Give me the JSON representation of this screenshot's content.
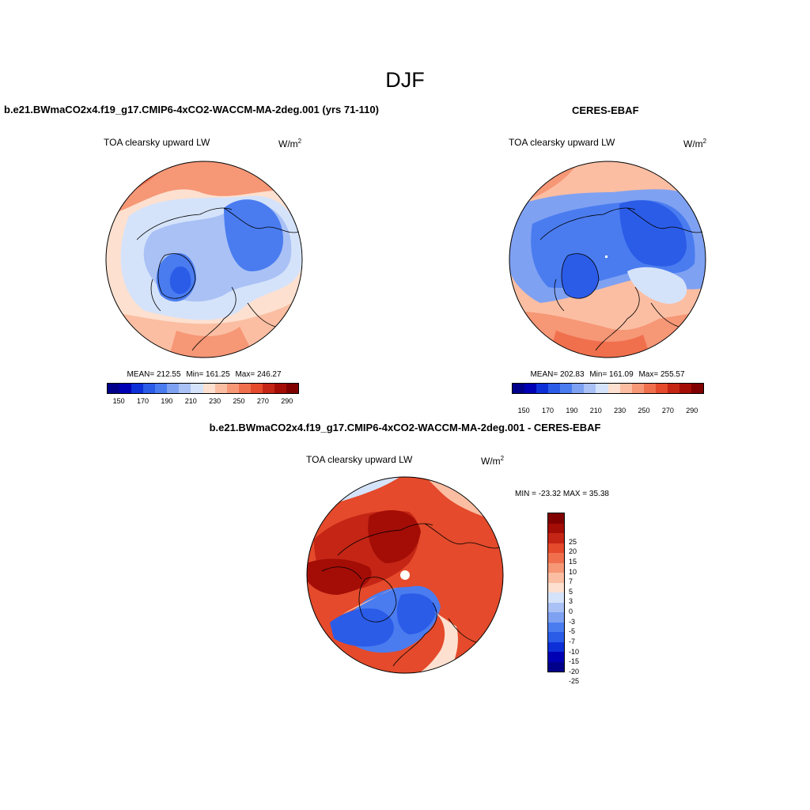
{
  "title": "DJF",
  "panels": {
    "model": {
      "title": "b.e21.BWmaCO2x4.f19_g17.CMIP6-4xCO2-WACCM-MA-2deg.001 (yrs 71-110)",
      "variable": "TOA clearsky upward LW",
      "units": "W/m",
      "units_exp": "2",
      "mean": "MEAN= 212.55",
      "min": "Min= 161.25",
      "max": "Max= 246.27"
    },
    "obs": {
      "title": "CERES-EBAF",
      "variable": "TOA clearsky upward LW",
      "units": "W/m",
      "units_exp": "2",
      "mean": "MEAN= 202.83",
      "min": "Min= 161.09",
      "max": "Max= 255.57"
    },
    "diff": {
      "title": "b.e21.BWmaCO2x4.f19_g17.CMIP6-4xCO2-WACCM-MA-2deg.001 - CERES-EBAF",
      "variable": "TOA clearsky upward LW",
      "units": "W/m",
      "units_exp": "2",
      "minmax": "MIN = -23.32 MAX =  35.38"
    }
  },
  "colorbar_abs": {
    "colors": [
      "#00008b",
      "#0000b4",
      "#0d2fd8",
      "#2b5ce8",
      "#4a7cf0",
      "#7fa1f2",
      "#a9c1f5",
      "#d5e3fa",
      "#fde0cf",
      "#fbbea2",
      "#f69776",
      "#f0704d",
      "#e44a2b",
      "#c42515",
      "#a30d06",
      "#800000"
    ],
    "ticks": [
      "150",
      "170",
      "190",
      "210",
      "230",
      "250",
      "270",
      "290"
    ]
  },
  "colorbar_diff": {
    "colors": [
      "#800000",
      "#a30d06",
      "#c42515",
      "#e44a2b",
      "#f0704d",
      "#f69776",
      "#fbbea2",
      "#fde0cf",
      "#d5e3fa",
      "#a9c1f5",
      "#7fa1f2",
      "#4a7cf0",
      "#2b5ce8",
      "#0d2fd8",
      "#0000b4",
      "#00008b"
    ],
    "ticks": [
      "25",
      "20",
      "15",
      "10",
      "7",
      "5",
      "3",
      "0",
      "-3",
      "-5",
      "-7",
      "-10",
      "-15",
      "-20",
      "-25"
    ]
  }
}
